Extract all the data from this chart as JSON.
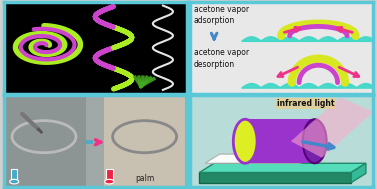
{
  "border_color": "#5bc8d8",
  "border_lw": 2.5,
  "bg_outer": "#d0d0d0",
  "panel_tl_bg": "#000000",
  "panel_tr_bg": "#e8e8e8",
  "panel_bl_bg": "#b0b0b0",
  "panel_br_bg": "#c8e8e8",
  "wave_color": "#40d8c8",
  "arch_outer_adsorption": "#d8e820",
  "arch_inner_adsorption": "#cc44cc",
  "arch_outer_desorption": "#d8e820",
  "arch_inner_desorption": "#cc44cc",
  "arrow_blue": "#4488cc",
  "arrow_pink": "#ee3388",
  "arrow_cyan": "#44aacc",
  "tube_outer": "#9933cc",
  "tube_inner": "#ddee22",
  "platform_color": "#44ccaa",
  "ir_beam_color": "#ffaacc",
  "text_color_dark": "#111111",
  "label_adsorption": "acetone vapor\nadsorption",
  "label_desorption": "acetone vapor\ndesorption",
  "label_ir": "infrared light",
  "label_palm": "palm",
  "spiral_outer_color": "#aaee22",
  "spiral_inner_color": "#cc44cc",
  "helix_color1": "#aaee22",
  "helix_color2": "#cc44cc",
  "figsize": [
    3.77,
    1.89
  ],
  "dpi": 100
}
